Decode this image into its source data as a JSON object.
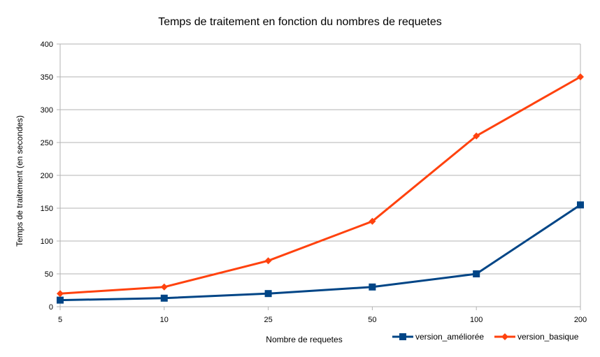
{
  "chart_data": {
    "type": "line",
    "title": "Temps de traitement en fonction du nombres de requetes",
    "xlabel": "Nombre de requetes",
    "ylabel": "Temps de traitement (en secondes)",
    "categories": [
      "5",
      "10",
      "25",
      "50",
      "100",
      "200"
    ],
    "ylim": [
      0,
      400
    ],
    "yticks": [
      0,
      50,
      100,
      150,
      200,
      250,
      300,
      350,
      400
    ],
    "grid": true,
    "legend": "bottom-right",
    "series": [
      {
        "name": "version_améliorée",
        "values": [
          10,
          13,
          20,
          30,
          50,
          155
        ],
        "color": "#004586",
        "marker": "square"
      },
      {
        "name": "version_basique",
        "values": [
          20,
          30,
          70,
          130,
          260,
          350
        ],
        "color": "#ff420e",
        "marker": "diamond"
      }
    ]
  }
}
